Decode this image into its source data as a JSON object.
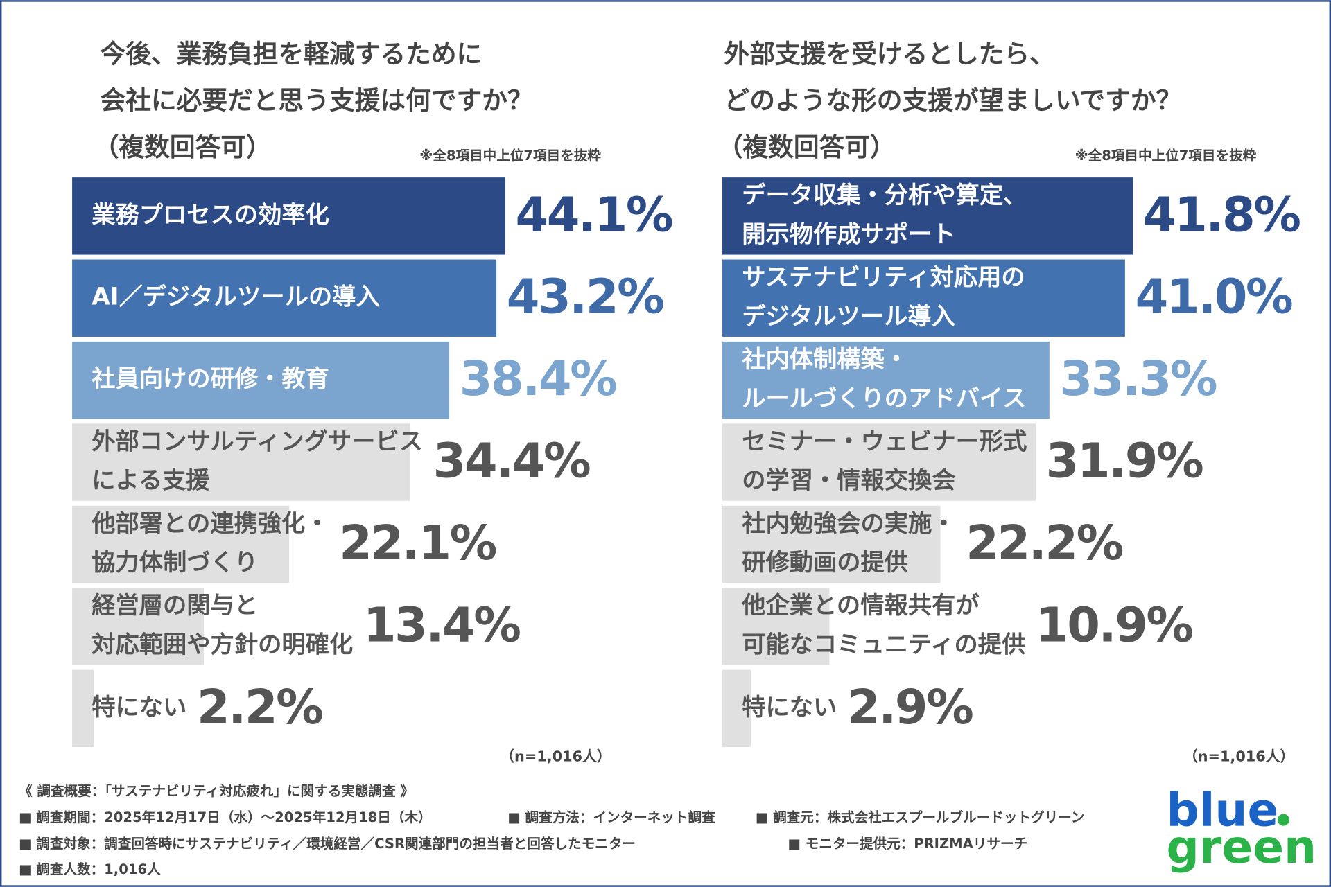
{
  "chart_data": [
    {
      "type": "bar",
      "title": [
        "今後、業務負担を軽減するために",
        "会社に必要だと思う支援は何ですか？",
        "（複数回答可）"
      ],
      "note": "※全8項目中上位7項目を抜粋",
      "categories": [
        [
          "業務プロセスの効率化"
        ],
        [
          "AI／デジタルツールの導入"
        ],
        [
          "社員向けの研修・教育"
        ],
        [
          "外部コンサルティングサービス",
          "による支援"
        ],
        [
          "他部署との連携強化・",
          "協力体制づくり"
        ],
        [
          "経営層の関与と",
          "対応範囲や方針の明確化"
        ],
        [
          "特にない"
        ]
      ],
      "values": [
        44.1,
        43.2,
        38.4,
        34.4,
        22.1,
        13.4,
        2.2
      ],
      "value_labels": [
        "44.1%",
        "43.2%",
        "38.4%",
        "34.4%",
        "22.1%",
        "13.4%",
        "2.2%"
      ],
      "colors": [
        "#2c4a86",
        "#4372b0",
        "#7ba5cf",
        "#e0e0e0",
        "#e0e0e0",
        "#e0e0e0",
        "#e0e0e0"
      ],
      "label_colors": [
        "#2c4a86",
        "#3f6aa8",
        "#7ba5cf",
        "#555555",
        "#555555",
        "#555555",
        "#555555"
      ],
      "n": "（n=1,016人）"
    },
    {
      "type": "bar",
      "title": [
        "外部支援を受けるとしたら、",
        "どのような形の支援が望ましいですか？",
        "（複数回答可）"
      ],
      "note": "※全8項目中上位7項目を抜粋",
      "categories": [
        [
          "データ収集・分析や算定、",
          "開示物作成サポート"
        ],
        [
          "サステナビリティ対応用の",
          "デジタルツール導入"
        ],
        [
          "社内体制構築・",
          "ルールづくりのアドバイス"
        ],
        [
          "セミナー・ウェビナー形式",
          "の学習・情報交換会"
        ],
        [
          "社内勉強会の実施・",
          "研修動画の提供"
        ],
        [
          "他企業との情報共有が",
          "可能なコミュニティの提供"
        ],
        [
          "特にない"
        ]
      ],
      "values": [
        41.8,
        41.0,
        33.3,
        31.9,
        22.2,
        10.9,
        2.9
      ],
      "value_labels": [
        "41.8%",
        "41.0%",
        "33.3%",
        "31.9%",
        "22.2%",
        "10.9%",
        "2.9%"
      ],
      "colors": [
        "#2c4a86",
        "#4372b0",
        "#7ba5cf",
        "#e0e0e0",
        "#e0e0e0",
        "#e0e0e0",
        "#e0e0e0"
      ],
      "label_colors": [
        "#2c4a86",
        "#3f6aa8",
        "#7ba5cf",
        "#555555",
        "#555555",
        "#555555",
        "#555555"
      ],
      "n": "（n=1,016人）"
    }
  ],
  "footer": {
    "heading": "《 調査概要：「サステナビリティ対応疲れ」に関する実態調査 》",
    "items": [
      "■ 調査期間：2025年12月17日（水）～2025年12月18日（木）",
      "■ 調査方法：インターネット調査",
      "■ 調査元：株式会社エスプールブルードットグリーン",
      "■ 調査対象：調査回答時にサステナビリティ／環境経営／CSR関連部門の担当者と回答したモニター",
      "■ モニター提供元：PRIZMAリサーチ",
      "■ 調査人数：1,016人"
    ]
  },
  "logo": [
    "blue",
    "green"
  ]
}
